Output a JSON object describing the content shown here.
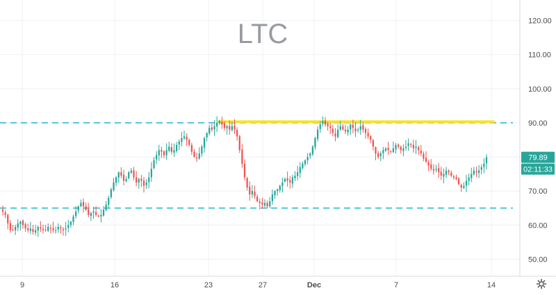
{
  "chart_data": {
    "type": "candlestick",
    "title": "LTC",
    "x_ticks": [
      "9",
      "16",
      "23",
      "27",
      "Dec",
      "7",
      "14"
    ],
    "y_ticks": [
      "50.00",
      "60.00",
      "70.00",
      "80.00",
      "90.00",
      "100.00",
      "110.00",
      "120.00"
    ],
    "ylim": [
      45,
      126
    ],
    "last_price": "79.89",
    "countdown": "02:11:33",
    "grid": true,
    "colors": {
      "up": "#26a69a",
      "down": "#ef5350",
      "support_resistance": "#4dc8d8",
      "resistance_marker": "#f6e22a",
      "price_label_bg": "#26a69a",
      "title": "#9a9ba1"
    },
    "horizontal_lines": [
      {
        "style": "dashed",
        "color": "#4dc8d8",
        "y": 90.0
      },
      {
        "style": "dashed",
        "color": "#4dc8d8",
        "y": 65.0
      },
      {
        "style": "solid-thick",
        "color": "#f6e22a",
        "y": 90.3,
        "x_start": "23",
        "x_end": "14"
      }
    ],
    "series_close": [
      64.0,
      63.0,
      60.5,
      58.5,
      58.5,
      59.5,
      60.5,
      61.0,
      60.0,
      59.0,
      58.5,
      59.0,
      58.0,
      58.5,
      59.5,
      59.0,
      58.5,
      58.5,
      59.5,
      59.0,
      58.5,
      58.5,
      59.5,
      59.0,
      58.5,
      59.0,
      60.0,
      61.0,
      62.5,
      64.0,
      65.5,
      66.5,
      65.5,
      64.5,
      63.0,
      63.5,
      64.0,
      63.0,
      62.5,
      63.0,
      64.5,
      66.0,
      68.0,
      70.5,
      72.5,
      74.0,
      75.5,
      74.5,
      73.0,
      73.5,
      75.5,
      76.0,
      74.0,
      72.5,
      73.5,
      73.0,
      71.5,
      72.5,
      74.0,
      76.5,
      79.0,
      80.5,
      82.0,
      81.5,
      80.5,
      82.0,
      83.0,
      81.5,
      82.0,
      83.5,
      84.5,
      85.5,
      86.0,
      85.0,
      83.5,
      81.5,
      80.0,
      79.5,
      81.0,
      83.0,
      85.5,
      87.0,
      88.5,
      88.0,
      89.0,
      90.0,
      90.5,
      89.5,
      88.5,
      89.0,
      88.0,
      89.0,
      88.0,
      86.0,
      82.0,
      78.0,
      74.0,
      71.0,
      69.0,
      70.0,
      68.5,
      67.0,
      66.5,
      66.0,
      66.5,
      65.5,
      67.0,
      69.0,
      70.0,
      70.5,
      71.5,
      72.5,
      73.5,
      73.0,
      72.5,
      74.0,
      74.5,
      75.5,
      77.0,
      78.0,
      79.0,
      80.0,
      81.0,
      83.0,
      85.5,
      88.0,
      89.5,
      90.5,
      89.5,
      89.0,
      88.5,
      87.0,
      86.0,
      88.0,
      89.0,
      88.0,
      87.5,
      88.0,
      89.5,
      88.5,
      87.5,
      88.0,
      89.0,
      88.0,
      87.0,
      86.0,
      85.0,
      83.0,
      81.0,
      80.0,
      81.0,
      82.0,
      82.5,
      82.0,
      81.5,
      82.5,
      83.5,
      83.0,
      82.0,
      82.5,
      83.0,
      84.0,
      83.5,
      82.5,
      83.0,
      82.0,
      81.0,
      79.5,
      78.5,
      77.5,
      76.5,
      76.0,
      76.5,
      75.5,
      74.5,
      75.0,
      76.0,
      75.5,
      74.5,
      74.0,
      73.5,
      72.0,
      71.0,
      71.5,
      73.0,
      74.0,
      75.0,
      76.0,
      75.5,
      76.0,
      77.0,
      78.0,
      79.89
    ]
  }
}
